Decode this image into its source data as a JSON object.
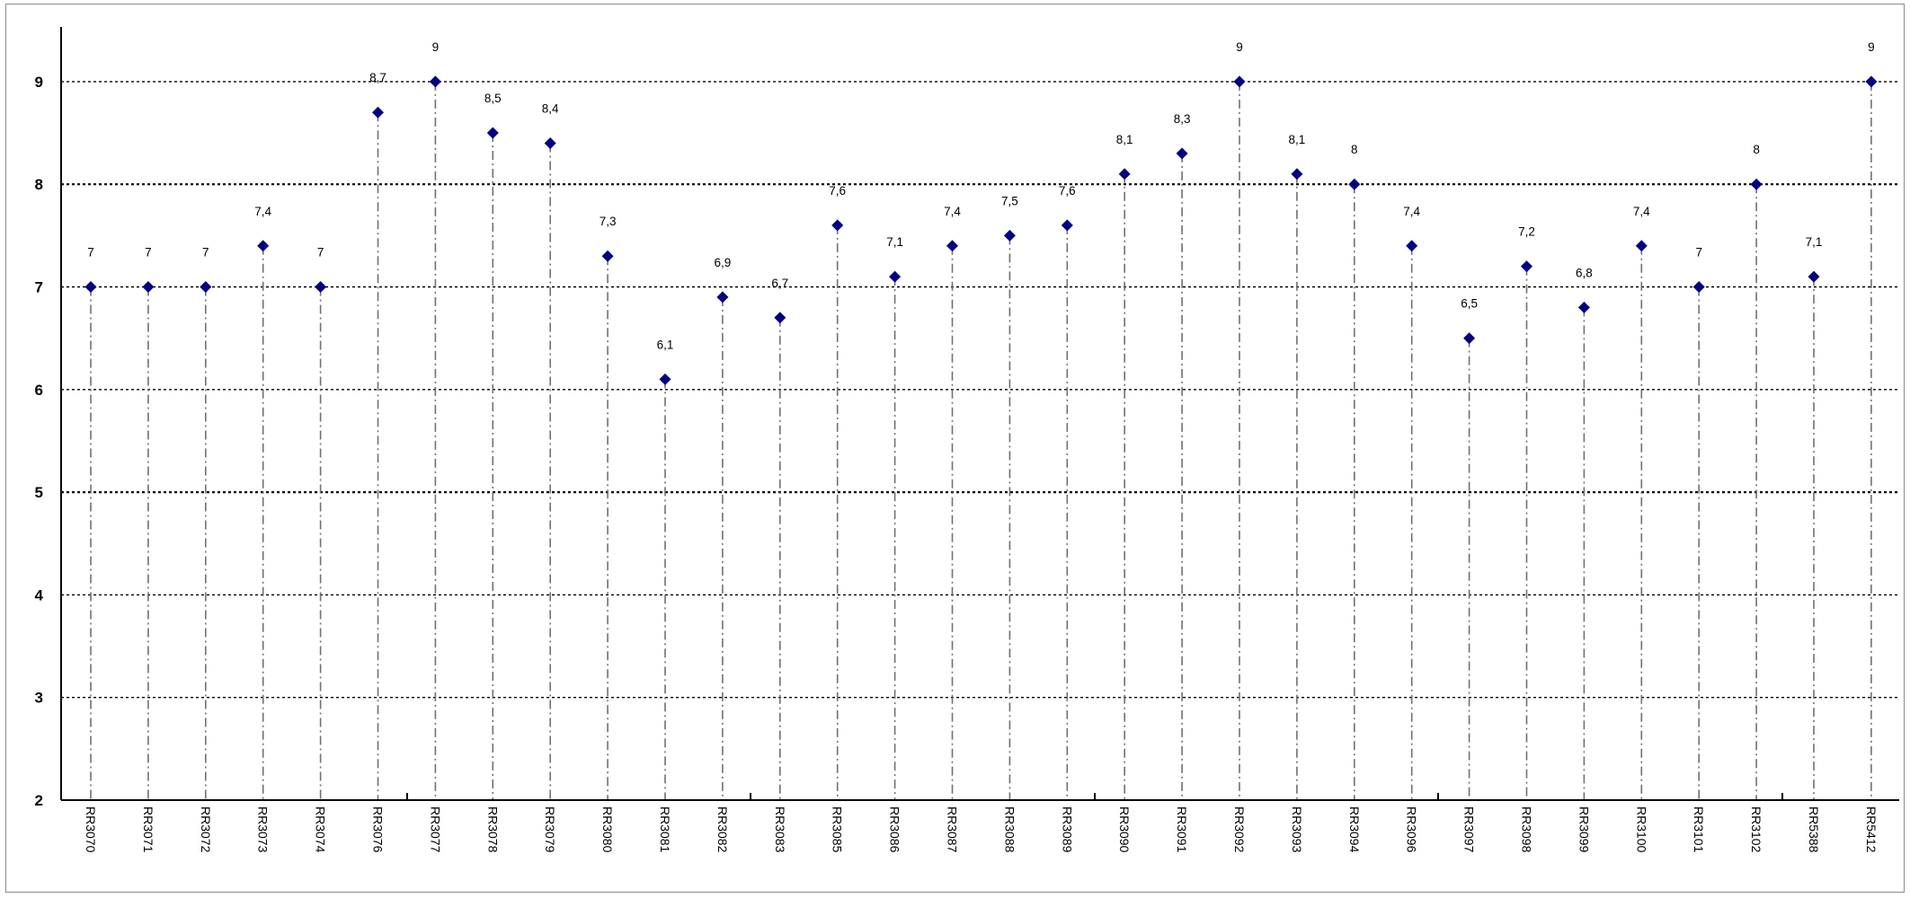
{
  "chart_data": {
    "type": "scatter",
    "title": "",
    "xlabel": "",
    "ylabel": "",
    "ylim": [
      2,
      9.5
    ],
    "yticks": [
      2,
      3,
      4,
      5,
      6,
      7,
      8,
      9
    ],
    "grid": true,
    "legend": "none",
    "drop_lines": true,
    "marker": "diamond",
    "colors": {
      "marker": "#000080",
      "gridline": "#000000",
      "dropline": "#707070",
      "axis": "#000000"
    },
    "categories": [
      "RR3070",
      "RR3071",
      "RR3072",
      "RR3073",
      "RR3074",
      "RR3076",
      "RR3077",
      "RR3078",
      "RR3079",
      "RR3080",
      "RR3081",
      "RR3082",
      "RR3083",
      "RR3085",
      "RR3086",
      "RR3087",
      "RR3088",
      "RR3089",
      "RR3090",
      "RR3091",
      "RR3092",
      "RR3093",
      "RR3094",
      "RR3096",
      "RR3097",
      "RR3098",
      "RR3099",
      "RR3100",
      "RR3101",
      "RR3102",
      "RR5388",
      "RR5412"
    ],
    "values": [
      7,
      7,
      7,
      7.4,
      7,
      8.7,
      9,
      8.5,
      8.4,
      7.3,
      6.1,
      6.9,
      6.7,
      7.6,
      7.1,
      7.4,
      7.5,
      7.6,
      8.1,
      8.3,
      9,
      8.1,
      8,
      7.4,
      6.5,
      7.2,
      6.8,
      7.4,
      7,
      8,
      7.1,
      9
    ],
    "data_labels": [
      "7",
      "7",
      "7",
      "7,4",
      "7",
      "8,7",
      "9",
      "8,5",
      "8,4",
      "7,3",
      "6,1",
      "6,9",
      "6,7",
      "7,6",
      "7,1",
      "7,4",
      "7,5",
      "7,6",
      "8,1",
      "8,3",
      "9",
      "8,1",
      "8",
      "7,4",
      "6,5",
      "7,2",
      "6,8",
      "7,4",
      "7",
      "8",
      "7,1",
      "9"
    ]
  }
}
